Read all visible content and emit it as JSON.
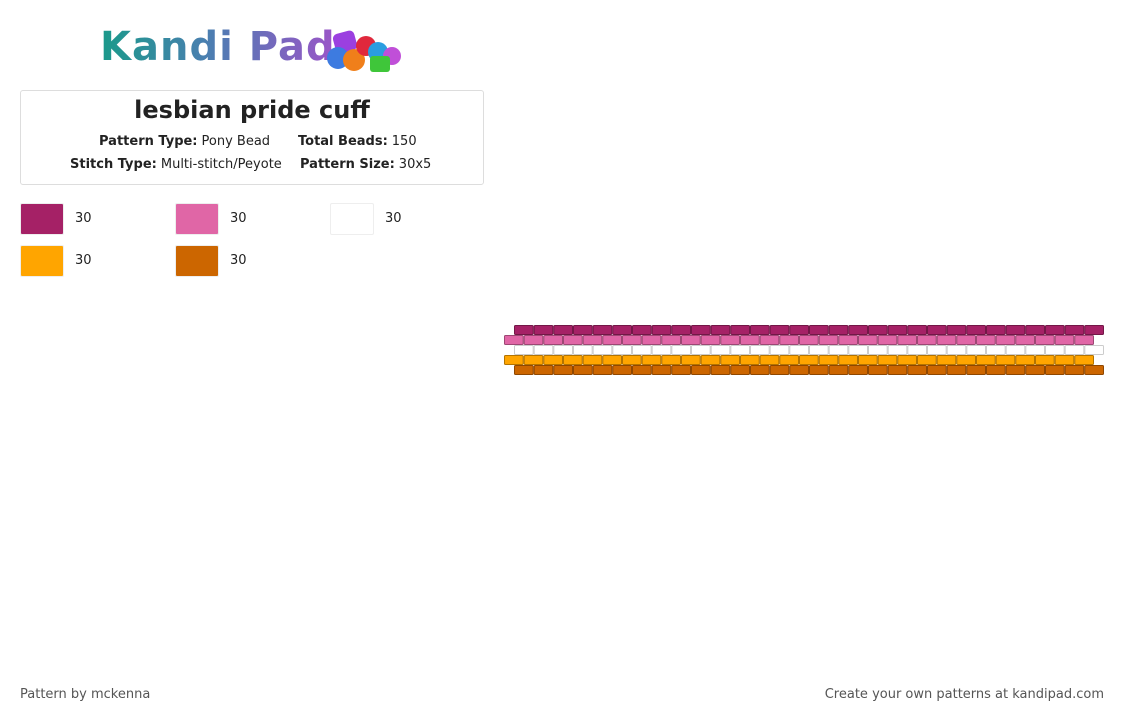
{
  "header": {
    "logo": "Kandi Pad",
    "title": "lesbian pride cuff",
    "info": [
      {
        "label": "Pattern Type:",
        "value": "Pony Bead"
      },
      {
        "label": "Total Beads:",
        "value": "150"
      },
      {
        "label": "Stitch Type:",
        "value": "Multi-stitch/Peyote"
      },
      {
        "label": "Pattern Size:",
        "value": "30x5"
      }
    ]
  },
  "palette": [
    {
      "color": "#a52166",
      "count": "30"
    },
    {
      "color": "#e066a6",
      "count": "30"
    },
    {
      "color": "#ffffff",
      "count": "30"
    },
    {
      "color": "#ffa500",
      "count": "30"
    },
    {
      "color": "#cc6600",
      "count": "30"
    }
  ],
  "pattern": {
    "beads_per_row": 30,
    "rows": [
      0,
      1,
      2,
      3,
      4
    ]
  },
  "footer": {
    "author": "Pattern by mckenna",
    "promo": "Create your own patterns at kandipad.com"
  }
}
